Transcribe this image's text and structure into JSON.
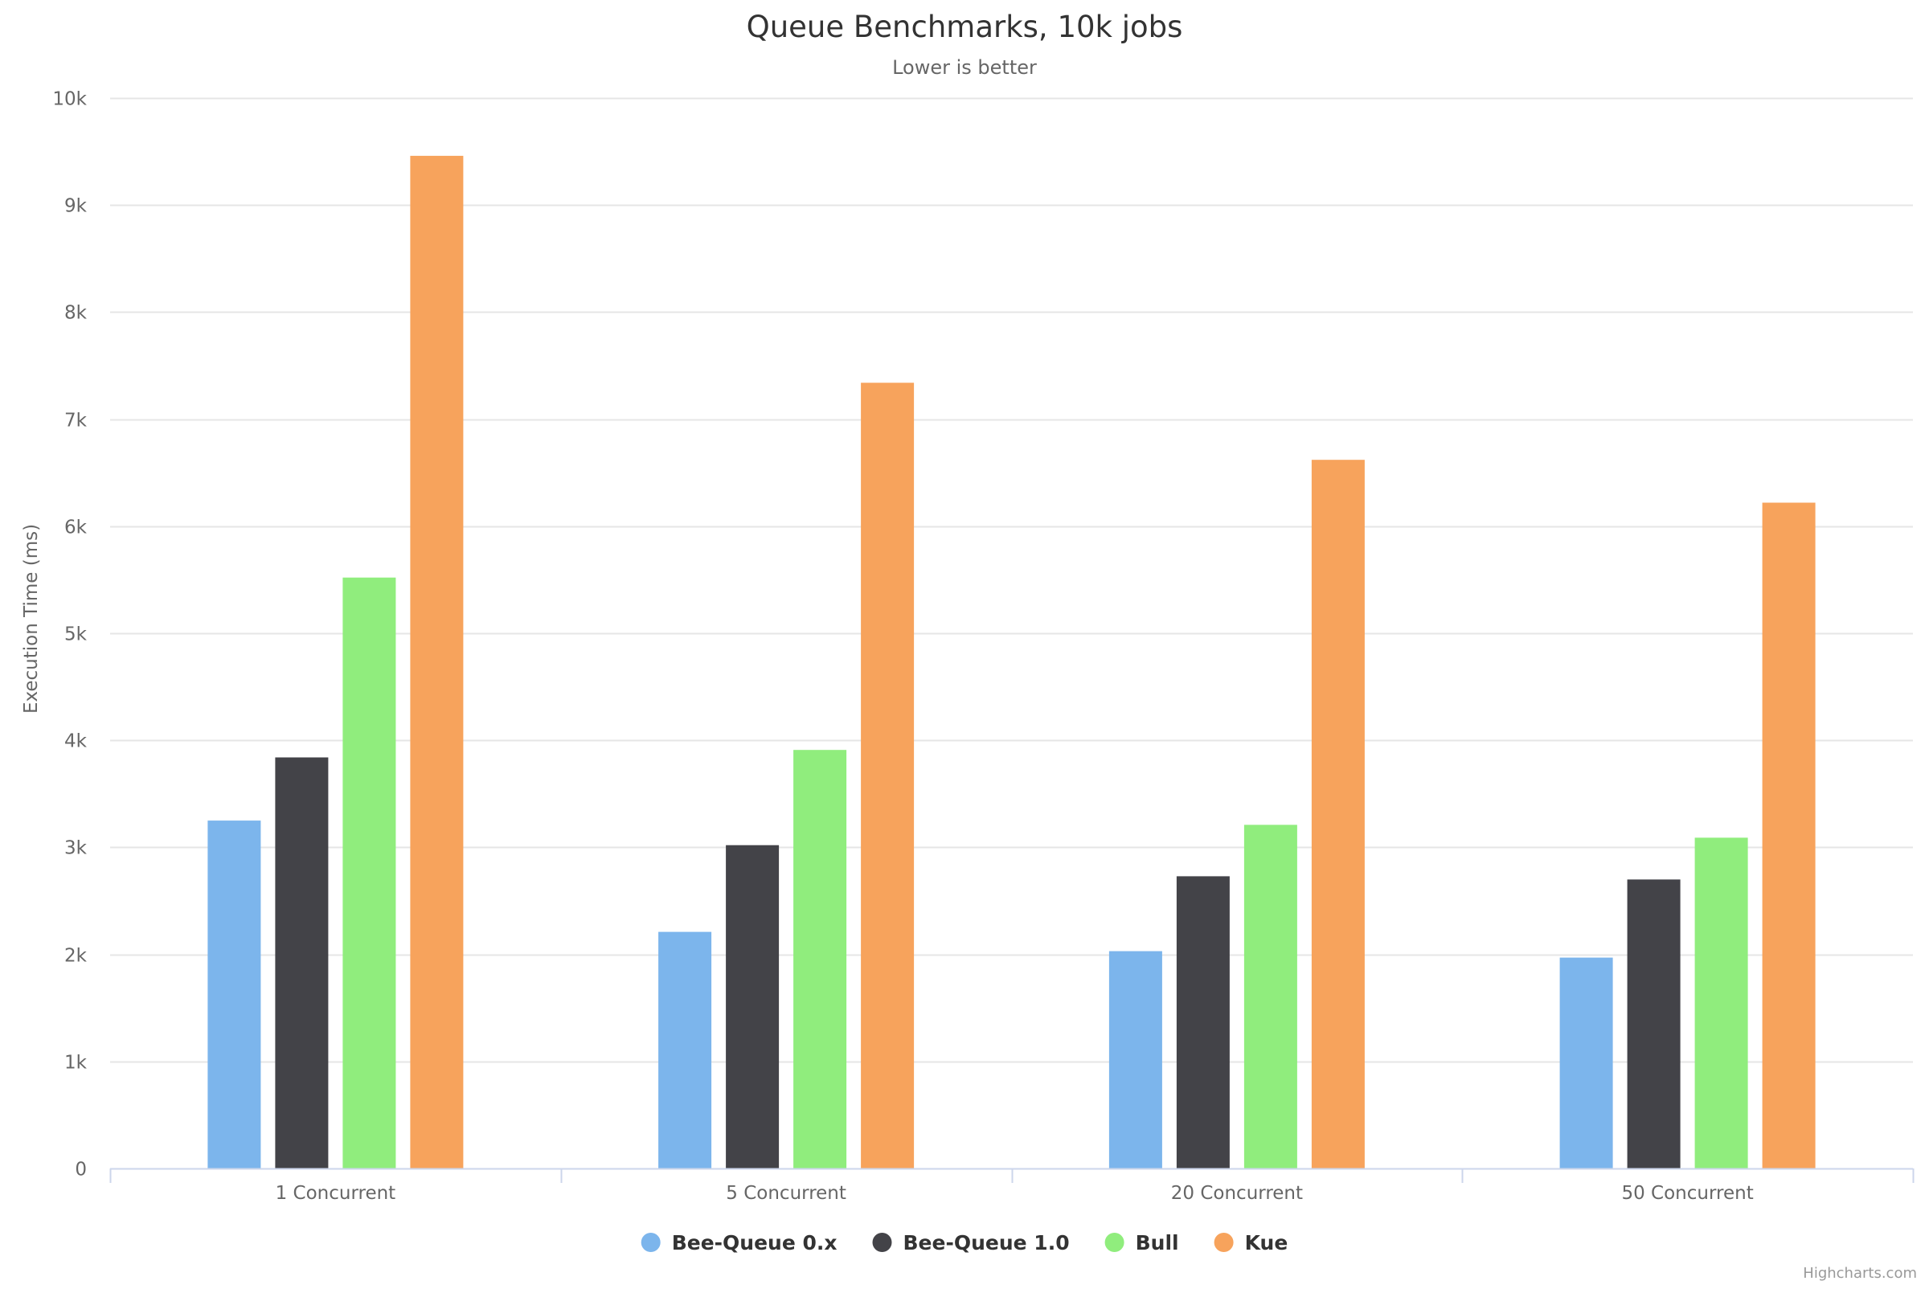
{
  "chart_data": {
    "type": "bar",
    "title": "Queue Benchmarks, 10k jobs",
    "subtitle": "Lower is better",
    "xlabel": "",
    "ylabel": "Execution Time (ms)",
    "ylim": [
      0,
      10000
    ],
    "yticks": [
      0,
      1000,
      2000,
      3000,
      4000,
      5000,
      6000,
      7000,
      8000,
      9000,
      10000
    ],
    "ytick_labels": [
      "0",
      "1k",
      "2k",
      "3k",
      "4k",
      "5k",
      "6k",
      "7k",
      "8k",
      "9k",
      "10k"
    ],
    "categories": [
      "1 Concurrent",
      "5 Concurrent",
      "20 Concurrent",
      "50 Concurrent"
    ],
    "series": [
      {
        "name": "Bee-Queue 0.x",
        "color": "#7cb5ec",
        "values": [
          3250,
          2210,
          2030,
          1970
        ]
      },
      {
        "name": "Bee-Queue 1.0",
        "color": "#434348",
        "values": [
          3840,
          3020,
          2730,
          2700
        ]
      },
      {
        "name": "Bull",
        "color": "#90ed7d",
        "values": [
          5520,
          3910,
          3210,
          3090
        ]
      },
      {
        "name": "Kue",
        "color": "#f7a35c",
        "values": [
          9460,
          7340,
          6620,
          6220
        ]
      }
    ],
    "grid": true,
    "legend_position": "bottom-center",
    "credits": "Highcharts.com"
  }
}
